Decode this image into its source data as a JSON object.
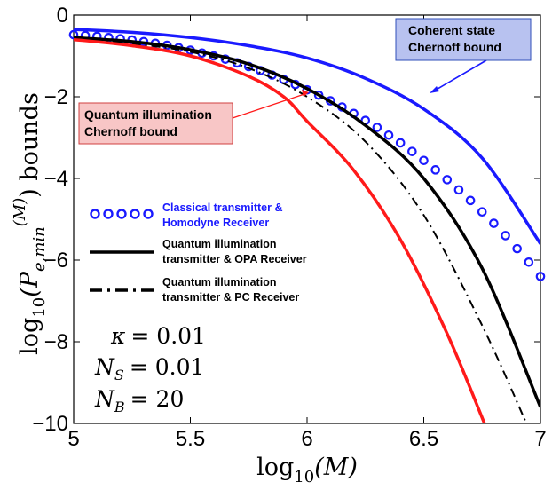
{
  "chart_data": {
    "type": "line",
    "title": "",
    "xlabel_base": "log",
    "xlabel_sub": "10",
    "xlabel_arg": "(M)",
    "ylabel_base": "log",
    "ylabel_sub": "10",
    "ylabel_arg": "(P",
    "ylabel_e": "e,min",
    "ylabel_m": "(M)",
    "ylabel_tail": ") bounds",
    "xlim": [
      5,
      7
    ],
    "ylim": [
      -10,
      0
    ],
    "x_ticks": [
      5,
      5.5,
      6,
      6.5,
      7
    ],
    "x_tick_labels": [
      "5",
      "5.5",
      "6",
      "6.5",
      "7"
    ],
    "y_ticks": [
      0,
      -2,
      -4,
      -6,
      -8,
      -10
    ],
    "y_tick_labels": [
      "0",
      "−2",
      "−4",
      "−6",
      "−8",
      "−10"
    ],
    "series": [
      {
        "name": "Coherent state Chernoff bound",
        "color": "#1a1aff",
        "style": "solid",
        "x": [
          5.0,
          5.25,
          5.5,
          5.75,
          6.0,
          6.25,
          6.5,
          6.75,
          7.0
        ],
        "y": [
          -0.35,
          -0.42,
          -0.55,
          -0.75,
          -1.05,
          -1.55,
          -2.3,
          -3.5,
          -5.6
        ]
      },
      {
        "name": "Classical transmitter & Homodyne Receiver",
        "color": "#1a1aff",
        "style": "markers",
        "x": [
          5.0,
          5.05,
          5.1,
          5.15,
          5.2,
          5.25,
          5.3,
          5.35,
          5.4,
          5.45,
          5.5,
          5.55,
          5.6,
          5.65,
          5.7,
          5.75,
          5.8,
          5.85,
          5.9,
          5.95,
          6.0,
          6.05,
          6.1,
          6.15,
          6.2,
          6.25,
          6.3,
          6.35,
          6.4,
          6.45,
          6.5,
          6.55,
          6.6,
          6.65,
          6.7,
          6.75,
          6.8,
          6.85,
          6.9,
          6.95,
          7.0
        ],
        "y": [
          -0.48,
          -0.5,
          -0.52,
          -0.55,
          -0.58,
          -0.61,
          -0.65,
          -0.69,
          -0.74,
          -0.8,
          -0.86,
          -0.93,
          -1.0,
          -1.08,
          -1.17,
          -1.26,
          -1.36,
          -1.47,
          -1.58,
          -1.7,
          -1.83,
          -1.96,
          -2.1,
          -2.25,
          -2.41,
          -2.58,
          -2.75,
          -2.94,
          -3.13,
          -3.34,
          -3.56,
          -3.79,
          -4.03,
          -4.28,
          -4.54,
          -4.82,
          -5.1,
          -5.4,
          -5.72,
          -6.05,
          -6.4
        ]
      },
      {
        "name": "Quantum illumination transmitter & OPA Receiver",
        "color": "#000000",
        "style": "solid",
        "x": [
          5.0,
          5.25,
          5.5,
          5.75,
          6.0,
          6.25,
          6.5,
          6.75,
          7.0
        ],
        "y": [
          -0.55,
          -0.65,
          -0.85,
          -1.2,
          -1.8,
          -2.7,
          -4.0,
          -6.2,
          -9.6
        ]
      },
      {
        "name": "Quantum illumination transmitter & PC Receiver",
        "color": "#000000",
        "style": "dashdot",
        "x": [
          5.0,
          5.25,
          5.5,
          5.75,
          6.0,
          6.25,
          6.5,
          6.75,
          6.94
        ],
        "y": [
          -0.58,
          -0.7,
          -0.9,
          -1.3,
          -2.0,
          -3.1,
          -4.9,
          -7.6,
          -10.0
        ]
      },
      {
        "name": "Quantum illumination Chernoff bound",
        "color": "#ff1a1a",
        "style": "solid",
        "x": [
          5.0,
          5.25,
          5.5,
          5.75,
          5.9,
          6.0,
          6.2,
          6.4,
          6.6,
          6.76
        ],
        "y": [
          -0.6,
          -0.75,
          -1.0,
          -1.5,
          -2.0,
          -2.6,
          -3.8,
          -5.5,
          -7.8,
          -10.0
        ]
      }
    ],
    "legend": [
      {
        "line1": "Classical transmitter &",
        "line2": "Homodyne Receiver",
        "color": "#1a1aff"
      },
      {
        "line1": "Quantum illumination",
        "line2": "transmitter & OPA Receiver",
        "color": "#000000"
      },
      {
        "line1": "Quantum illumination",
        "line2": "transmitter & PC Receiver",
        "color": "#000000"
      }
    ],
    "annotations": [
      {
        "line1": "Coherent state",
        "line2": "Chernoff bound",
        "bg": "#b8c2f0",
        "border": "#2f4fb8",
        "arrow_color": "#1a1aff"
      },
      {
        "line1": "Quantum illumination",
        "line2": "Chernoff bound",
        "bg": "#f8c6c6",
        "border": "#d04040",
        "arrow_color": "#ff1a1a"
      }
    ],
    "params": [
      {
        "name": "κ",
        "sub": "",
        "value": "= 0.01"
      },
      {
        "name": "N",
        "sub": "S",
        "value": "= 0.01"
      },
      {
        "name": "N",
        "sub": "B",
        "value": "= 20"
      }
    ]
  }
}
